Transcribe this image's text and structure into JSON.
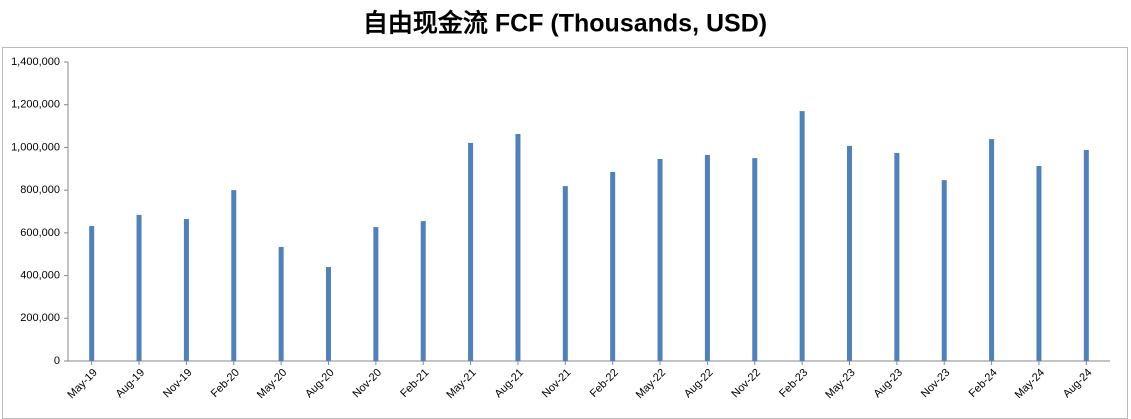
{
  "chart_data": {
    "type": "bar",
    "title": "自由现金流 FCF (Thousands, USD)",
    "categories": [
      "May-19",
      "Aug-19",
      "Nov-19",
      "Feb-20",
      "May-20",
      "Aug-20",
      "Nov-20",
      "Feb-21",
      "May-21",
      "Aug-21",
      "Nov-21",
      "Feb-22",
      "May-22",
      "Aug-22",
      "Nov-22",
      "Feb-23",
      "May-23",
      "Aug-23",
      "Nov-23",
      "Feb-24",
      "May-24",
      "Aug-24"
    ],
    "values": [
      632000,
      684000,
      665000,
      800000,
      534000,
      440000,
      627000,
      655000,
      1021000,
      1063000,
      819000,
      885000,
      946000,
      965000,
      950000,
      1170000,
      1007000,
      974000,
      847000,
      1039000,
      913000,
      988000
    ],
    "color": "#4f81bd",
    "ylim": [
      0,
      1400000
    ],
    "yticks": [
      0,
      {
        "value": 200000,
        "label": "200,000"
      },
      {
        "value": 400000,
        "label": "400,000"
      },
      {
        "value": 600000,
        "label": "600,000"
      },
      {
        "value": 800000,
        "label": "800,000"
      },
      {
        "value": 1000000,
        "label": "1,000,000"
      },
      {
        "value": 1200000,
        "label": "1,200,000"
      },
      {
        "value": 1400000,
        "label": "1,400,000"
      }
    ],
    "grid": false
  }
}
